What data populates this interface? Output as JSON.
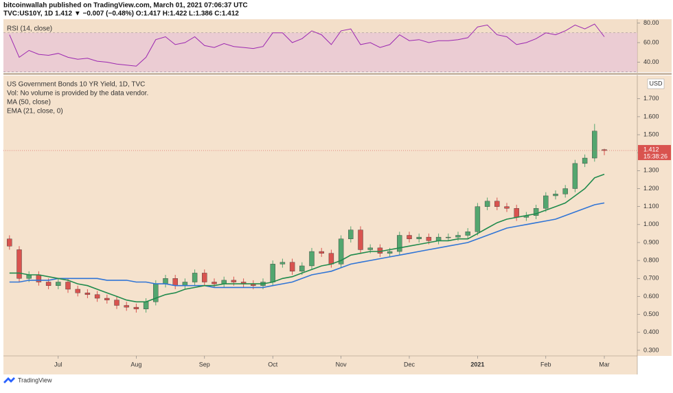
{
  "header": {
    "publisher": "bitcoinwallah published on TradingView.com, March 01, 2021 07:06:37 UTC",
    "symbol_line": "TVC:US10Y, 1D  1.412 ▼ −0.007 (−0.48%) O:1.417 H:1.422 L:1.386 C:1.412"
  },
  "footer": {
    "brand": "TradingView"
  },
  "chart_data": [
    {
      "type": "candlestick",
      "title": "US Government Bonds 10 YR Yield, 1D, TVC",
      "notes": [
        "Vol: No volume is provided by the data vendor.",
        "MA (50, close)",
        "EMA (21, close, 0)"
      ],
      "unit_label": "USD",
      "countdown": "15:38:26",
      "up_color": "#53a66f",
      "down_color": "#d9534f",
      "categories": [
        null,
        null,
        null,
        null,
        null,
        "Jul",
        null,
        null,
        null,
        null,
        null,
        null,
        null,
        "Aug",
        null,
        null,
        null,
        null,
        null,
        null,
        "Sep",
        null,
        null,
        null,
        null,
        null,
        null,
        "Oct",
        null,
        null,
        null,
        null,
        null,
        null,
        "Nov",
        null,
        null,
        null,
        null,
        null,
        null,
        "Dec",
        null,
        null,
        null,
        null,
        null,
        null,
        "2021",
        null,
        null,
        null,
        null,
        null,
        null,
        "Feb",
        null,
        null,
        null,
        null,
        null,
        "Mar"
      ],
      "open": [
        0.92,
        0.86,
        0.7,
        0.72,
        0.68,
        0.66,
        0.68,
        0.64,
        0.62,
        0.61,
        0.59,
        0.58,
        0.55,
        0.54,
        0.53,
        0.57,
        0.67,
        0.7,
        0.66,
        0.68,
        0.73,
        0.68,
        0.67,
        0.69,
        0.68,
        0.67,
        0.66,
        0.68,
        0.78,
        0.79,
        0.74,
        0.77,
        0.85,
        0.84,
        0.78,
        0.92,
        0.97,
        0.86,
        0.87,
        0.84,
        0.85,
        0.94,
        0.92,
        0.93,
        0.91,
        0.93,
        0.93,
        0.94,
        0.96,
        1.1,
        1.13,
        1.1,
        1.09,
        1.04,
        1.05,
        1.09,
        1.16,
        1.17,
        1.2,
        1.34,
        1.37,
        1.417
      ],
      "high": [
        0.94,
        0.88,
        0.74,
        0.74,
        0.7,
        0.7,
        0.7,
        0.66,
        0.64,
        0.63,
        0.61,
        0.6,
        0.57,
        0.56,
        0.59,
        0.69,
        0.72,
        0.72,
        0.7,
        0.75,
        0.75,
        0.7,
        0.71,
        0.71,
        0.7,
        0.69,
        0.7,
        0.8,
        0.81,
        0.81,
        0.79,
        0.87,
        0.87,
        0.86,
        0.94,
        0.99,
        0.99,
        0.89,
        0.89,
        0.87,
        0.96,
        0.96,
        0.95,
        0.95,
        0.95,
        0.95,
        0.96,
        0.98,
        1.12,
        1.15,
        1.15,
        1.12,
        1.11,
        1.07,
        1.11,
        1.18,
        1.19,
        1.22,
        1.36,
        1.39,
        1.56,
        1.422
      ],
      "low": [
        0.86,
        0.68,
        0.68,
        0.66,
        0.64,
        0.64,
        0.62,
        0.6,
        0.59,
        0.57,
        0.56,
        0.53,
        0.52,
        0.51,
        0.51,
        0.55,
        0.65,
        0.64,
        0.64,
        0.66,
        0.66,
        0.65,
        0.65,
        0.66,
        0.65,
        0.64,
        0.64,
        0.66,
        0.76,
        0.72,
        0.72,
        0.75,
        0.82,
        0.76,
        0.76,
        0.9,
        0.84,
        0.84,
        0.82,
        0.82,
        0.83,
        0.9,
        0.9,
        0.89,
        0.89,
        0.91,
        0.91,
        0.92,
        0.94,
        1.08,
        1.08,
        1.07,
        1.02,
        1.02,
        1.03,
        1.07,
        1.14,
        1.15,
        1.18,
        1.32,
        1.35,
        1.386
      ],
      "close": [
        0.88,
        0.7,
        0.72,
        0.68,
        0.66,
        0.68,
        0.64,
        0.62,
        0.61,
        0.59,
        0.58,
        0.55,
        0.54,
        0.53,
        0.57,
        0.67,
        0.7,
        0.66,
        0.68,
        0.73,
        0.68,
        0.67,
        0.69,
        0.68,
        0.67,
        0.66,
        0.68,
        0.78,
        0.79,
        0.74,
        0.77,
        0.85,
        0.84,
        0.78,
        0.92,
        0.97,
        0.86,
        0.87,
        0.84,
        0.85,
        0.94,
        0.92,
        0.93,
        0.91,
        0.93,
        0.93,
        0.94,
        0.96,
        1.1,
        1.13,
        1.1,
        1.09,
        1.04,
        1.05,
        1.09,
        1.16,
        1.17,
        1.2,
        1.34,
        1.37,
        1.52,
        1.412
      ],
      "series": [
        {
          "color": "#2f74d6",
          "values": [
            0.68,
            0.68,
            0.69,
            0.69,
            0.69,
            0.7,
            0.7,
            0.7,
            0.7,
            0.7,
            0.69,
            0.69,
            0.69,
            0.68,
            0.68,
            0.67,
            0.67,
            0.66,
            0.66,
            0.66,
            0.66,
            0.65,
            0.65,
            0.65,
            0.65,
            0.65,
            0.65,
            0.66,
            0.67,
            0.68,
            0.7,
            0.72,
            0.73,
            0.74,
            0.76,
            0.78,
            0.79,
            0.8,
            0.81,
            0.82,
            0.83,
            0.84,
            0.85,
            0.86,
            0.87,
            0.88,
            0.89,
            0.9,
            0.92,
            0.94,
            0.96,
            0.98,
            0.99,
            1.0,
            1.01,
            1.02,
            1.03,
            1.05,
            1.07,
            1.09,
            1.11,
            1.12
          ]
        },
        {
          "color": "#1f8a4c",
          "values": [
            0.73,
            0.73,
            0.72,
            0.72,
            0.71,
            0.7,
            0.69,
            0.67,
            0.66,
            0.64,
            0.62,
            0.6,
            0.58,
            0.57,
            0.57,
            0.59,
            0.61,
            0.62,
            0.64,
            0.65,
            0.66,
            0.66,
            0.67,
            0.67,
            0.67,
            0.67,
            0.67,
            0.68,
            0.7,
            0.71,
            0.73,
            0.75,
            0.77,
            0.78,
            0.8,
            0.83,
            0.84,
            0.85,
            0.85,
            0.86,
            0.87,
            0.88,
            0.89,
            0.9,
            0.91,
            0.91,
            0.92,
            0.92,
            0.95,
            0.98,
            1.01,
            1.03,
            1.04,
            1.05,
            1.06,
            1.08,
            1.1,
            1.12,
            1.16,
            1.2,
            1.26,
            1.28
          ]
        }
      ],
      "ylim": [
        0.269,
        1.829
      ],
      "yticks": [
        {
          "value": 0.3,
          "label": "0.300"
        },
        {
          "value": 0.4,
          "label": "0.400"
        },
        {
          "value": 0.5,
          "label": "0.500"
        },
        {
          "value": 0.6,
          "label": "0.600"
        },
        {
          "value": 0.7,
          "label": "0.700"
        },
        {
          "value": 0.8,
          "label": "0.800"
        },
        {
          "value": 0.9,
          "label": "0.900"
        },
        {
          "value": 1.0,
          "label": "1.000"
        },
        {
          "value": 1.1,
          "label": "1.100"
        },
        {
          "value": 1.2,
          "label": "1.200"
        },
        {
          "value": 1.3,
          "label": "1.300"
        },
        {
          "value": 1.4,
          "label": "1.400"
        },
        {
          "value": 1.5,
          "label": "1.500"
        },
        {
          "value": 1.6,
          "label": "1.600"
        },
        {
          "value": 1.7,
          "label": "1.700"
        }
      ]
    },
    {
      "type": "line",
      "title": "RSI (14, close)",
      "color": "#9c27b0",
      "band": [
        30,
        70
      ],
      "values": [
        68,
        45,
        52,
        48,
        47,
        49,
        45,
        43,
        44,
        41,
        40,
        38,
        37,
        36,
        45,
        63,
        66,
        58,
        60,
        66,
        57,
        55,
        59,
        56,
        55,
        54,
        56,
        70,
        70,
        60,
        64,
        72,
        68,
        58,
        72,
        74,
        58,
        60,
        55,
        58,
        68,
        62,
        63,
        60,
        62,
        62,
        63,
        65,
        76,
        78,
        68,
        66,
        58,
        60,
        64,
        70,
        68,
        72,
        78,
        74,
        79,
        66
      ],
      "ylim": [
        29.8,
        83.9
      ],
      "yticks": [
        {
          "value": 40,
          "label": "40.00"
        },
        {
          "value": 60,
          "label": "60.00"
        },
        {
          "value": 80,
          "label": "80.00"
        }
      ]
    }
  ]
}
